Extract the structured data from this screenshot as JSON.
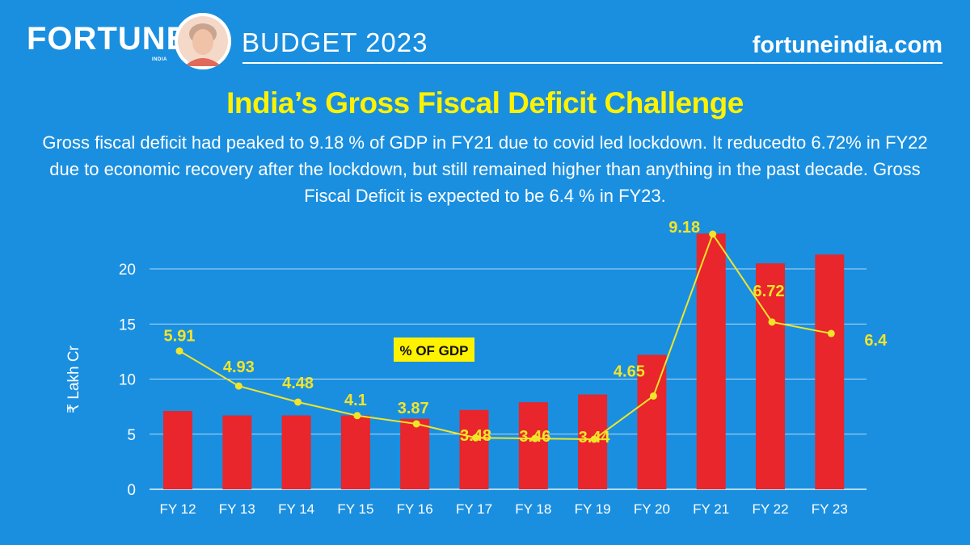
{
  "header": {
    "brand": "FORTUNE",
    "brand_sub": "INDIA",
    "section": "BUDGET 2023",
    "site": "fortuneindia.com"
  },
  "title": "India’s Gross Fiscal Deficit Challenge",
  "subtitle": "Gross fiscal deficit had peaked to 9.18 % of GDP in FY21 due to covid led lockdown. It reducedto 6.72% in FY22 due to economic recovery after the lockdown, but still remained higher than anything in the past decade. Gross Fiscal Deficit is expected to be 6.4 % in FY23.",
  "colors": {
    "background": "#1a8fe0",
    "bar": "#e8262b",
    "line": "#f2e42a",
    "title": "#fff200"
  },
  "chart_data": {
    "type": "bar",
    "categories": [
      "FY 12",
      "FY 13",
      "FY 14",
      "FY 15",
      "FY 16",
      "FY 17",
      "FY 18",
      "FY 19",
      "FY 20",
      "FY 21",
      "FY 22",
      "FY 23"
    ],
    "ylabel": "₹ Lakh Cr",
    "ylim": [
      0,
      23
    ],
    "yticks": [
      0,
      5,
      10,
      15,
      20
    ],
    "grid": true,
    "series": [
      {
        "type": "bar",
        "values": [
          7.1,
          6.7,
          6.7,
          6.7,
          6.4,
          7.2,
          7.9,
          8.6,
          12.2,
          23.2,
          20.5,
          21.3
        ]
      },
      {
        "type": "line",
        "name": "% OF GDP",
        "values": [
          5.91,
          4.93,
          4.48,
          4.1,
          3.87,
          3.48,
          3.46,
          3.44,
          4.65,
          9.18,
          6.72,
          6.4
        ],
        "labels": [
          "5.91",
          "4.93",
          "4.48",
          "4.1",
          "3.87",
          "3.48",
          "3.46",
          "3.44",
          "4.65",
          "9.18",
          "6.72",
          "6.4"
        ]
      }
    ]
  }
}
